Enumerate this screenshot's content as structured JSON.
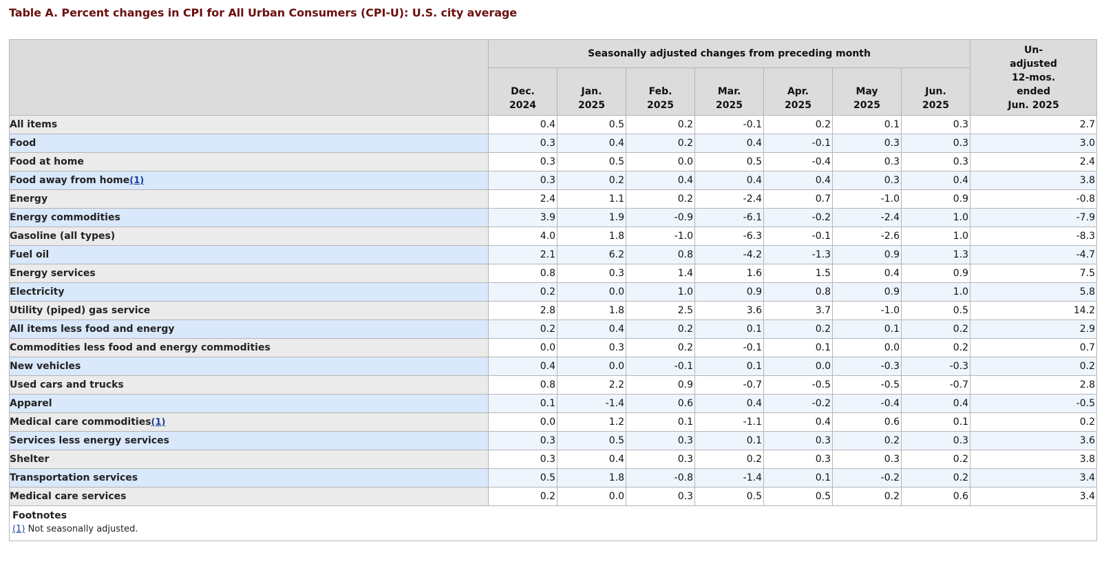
{
  "title": "Table A. Percent changes in CPI for All Urban Consumers (CPI-U): U.S. city average",
  "header": {
    "seasonal_group": "Seasonally adjusted changes from preceding month",
    "months": [
      {
        "month": "Dec.",
        "year": "2024"
      },
      {
        "month": "Jan.",
        "year": "2025"
      },
      {
        "month": "Feb.",
        "year": "2025"
      },
      {
        "month": "Mar.",
        "year": "2025"
      },
      {
        "month": "Apr.",
        "year": "2025"
      },
      {
        "month": "May",
        "year": "2025"
      },
      {
        "month": "Jun.",
        "year": "2025"
      }
    ],
    "unadjusted": [
      "Un-",
      "adjusted",
      "12-mos.",
      "ended",
      "Jun. 2025"
    ]
  },
  "rows": [
    {
      "label": "All items",
      "level": 0,
      "footnote": "",
      "values": [
        "0.4",
        "0.5",
        "0.2",
        "-0.1",
        "0.2",
        "0.1",
        "0.3",
        "2.7"
      ]
    },
    {
      "label": "Food",
      "level": 1,
      "footnote": "",
      "values": [
        "0.3",
        "0.4",
        "0.2",
        "0.4",
        "-0.1",
        "0.3",
        "0.3",
        "3.0"
      ]
    },
    {
      "label": "Food at home",
      "level": 2,
      "footnote": "",
      "values": [
        "0.3",
        "0.5",
        "0.0",
        "0.5",
        "-0.4",
        "0.3",
        "0.3",
        "2.4"
      ]
    },
    {
      "label": "Food away from home",
      "level": 2,
      "footnote": "(1)",
      "values": [
        "0.3",
        "0.2",
        "0.4",
        "0.4",
        "0.4",
        "0.3",
        "0.4",
        "3.8"
      ]
    },
    {
      "label": "Energy",
      "level": 1,
      "footnote": "",
      "values": [
        "2.4",
        "1.1",
        "0.2",
        "-2.4",
        "0.7",
        "-1.0",
        "0.9",
        "-0.8"
      ]
    },
    {
      "label": "Energy commodities",
      "level": 2,
      "footnote": "",
      "values": [
        "3.9",
        "1.9",
        "-0.9",
        "-6.1",
        "-0.2",
        "-2.4",
        "1.0",
        "-7.9"
      ]
    },
    {
      "label": "Gasoline (all types)",
      "level": 3,
      "footnote": "",
      "values": [
        "4.0",
        "1.8",
        "-1.0",
        "-6.3",
        "-0.1",
        "-2.6",
        "1.0",
        "-8.3"
      ]
    },
    {
      "label": "Fuel oil",
      "level": 3,
      "footnote": "",
      "values": [
        "2.1",
        "6.2",
        "0.8",
        "-4.2",
        "-1.3",
        "0.9",
        "1.3",
        "-4.7"
      ]
    },
    {
      "label": "Energy services",
      "level": 2,
      "footnote": "",
      "values": [
        "0.8",
        "0.3",
        "1.4",
        "1.6",
        "1.5",
        "0.4",
        "0.9",
        "7.5"
      ]
    },
    {
      "label": "Electricity",
      "level": 3,
      "footnote": "",
      "values": [
        "0.2",
        "0.0",
        "1.0",
        "0.9",
        "0.8",
        "0.9",
        "1.0",
        "5.8"
      ]
    },
    {
      "label": "Utility (piped) gas service",
      "level": 3,
      "footnote": "",
      "values": [
        "2.8",
        "1.8",
        "2.5",
        "3.6",
        "3.7",
        "-1.0",
        "0.5",
        "14.2"
      ]
    },
    {
      "label": "All items less food and energy",
      "level": 1,
      "footnote": "",
      "values": [
        "0.2",
        "0.4",
        "0.2",
        "0.1",
        "0.2",
        "0.1",
        "0.2",
        "2.9"
      ]
    },
    {
      "label": "Commodities less food and energy commodities",
      "level": 2,
      "footnote": "",
      "values": [
        "0.0",
        "0.3",
        "0.2",
        "-0.1",
        "0.1",
        "0.0",
        "0.2",
        "0.7"
      ]
    },
    {
      "label": "New vehicles",
      "level": 3,
      "footnote": "",
      "values": [
        "0.4",
        "0.0",
        "-0.1",
        "0.1",
        "0.0",
        "-0.3",
        "-0.3",
        "0.2"
      ]
    },
    {
      "label": "Used cars and trucks",
      "level": 3,
      "footnote": "",
      "values": [
        "0.8",
        "2.2",
        "0.9",
        "-0.7",
        "-0.5",
        "-0.5",
        "-0.7",
        "2.8"
      ]
    },
    {
      "label": "Apparel",
      "level": 3,
      "footnote": "",
      "values": [
        "0.1",
        "-1.4",
        "0.6",
        "0.4",
        "-0.2",
        "-0.4",
        "0.4",
        "-0.5"
      ]
    },
    {
      "label": "Medical care commodities",
      "level": 3,
      "footnote": "(1)",
      "values": [
        "0.0",
        "1.2",
        "0.1",
        "-1.1",
        "0.4",
        "0.6",
        "0.1",
        "0.2"
      ]
    },
    {
      "label": "Services less energy services",
      "level": 2,
      "footnote": "",
      "values": [
        "0.3",
        "0.5",
        "0.3",
        "0.1",
        "0.3",
        "0.2",
        "0.3",
        "3.6"
      ]
    },
    {
      "label": "Shelter",
      "level": 3,
      "footnote": "",
      "values": [
        "0.3",
        "0.4",
        "0.3",
        "0.2",
        "0.3",
        "0.3",
        "0.2",
        "3.8"
      ]
    },
    {
      "label": "Transportation services",
      "level": 3,
      "footnote": "",
      "values": [
        "0.5",
        "1.8",
        "-0.8",
        "-1.4",
        "0.1",
        "-0.2",
        "0.2",
        "3.4"
      ]
    },
    {
      "label": "Medical care services",
      "level": 3,
      "footnote": "",
      "values": [
        "0.2",
        "0.0",
        "0.3",
        "0.5",
        "0.5",
        "0.2",
        "0.6",
        "3.4"
      ]
    }
  ],
  "footnotes": {
    "title": "Footnotes",
    "items": [
      {
        "ref": "(1)",
        "text": "Not seasonally adjusted."
      }
    ]
  },
  "colors": {
    "title": "#6b0f0f",
    "header_bg": "#dcdcdc",
    "row_label_odd": "#ebebeb",
    "row_label_even": "#d9e8fb",
    "row_value_even": "#eef5fd",
    "link": "#1a3f9c"
  }
}
